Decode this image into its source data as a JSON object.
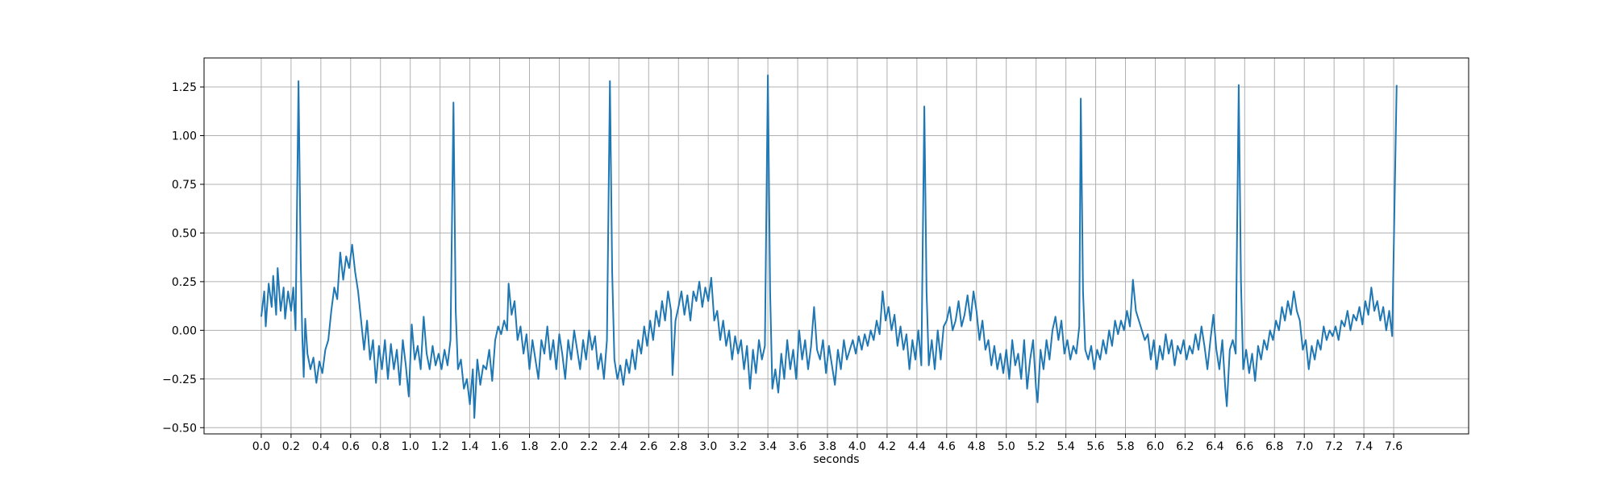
{
  "chart_data": {
    "type": "line",
    "xlabel": "seconds",
    "color": "#1f77b4",
    "grid": true,
    "xlim": [
      -0.384,
      8.103
    ],
    "ylim": [
      -0.532,
      1.399
    ],
    "xticks": [
      {
        "value": 0,
        "label": "0.0"
      },
      0.2,
      0.4,
      0.6,
      0.8,
      {
        "value": 1,
        "label": "1.0"
      },
      1.2,
      1.4,
      1.6,
      1.8,
      {
        "value": 2,
        "label": "2.0"
      },
      2.2,
      2.4,
      2.6,
      2.8,
      {
        "value": 3,
        "label": "3.0"
      },
      3.2,
      3.4,
      3.6,
      3.8,
      {
        "value": 4,
        "label": "4.0"
      },
      4.2,
      4.4,
      4.6,
      4.8,
      {
        "value": 5,
        "label": "5.0"
      },
      5.2,
      5.4,
      5.6,
      5.8,
      {
        "value": 6,
        "label": "6.0"
      },
      6.2,
      6.4,
      6.6,
      6.8,
      {
        "value": 7,
        "label": "7.0"
      },
      7.2,
      7.4,
      7.6
    ],
    "yticks": [
      {
        "value": -0.5,
        "label": "−0.50"
      },
      {
        "value": -0.25,
        "label": "−0.25"
      },
      {
        "value": 0,
        "label": "0.00"
      },
      0.25,
      {
        "value": 0.5,
        "label": "0.50"
      },
      0.75,
      {
        "value": 1,
        "label": "1.00"
      },
      1.25
    ],
    "x": [
      0.0,
      0.02,
      0.03,
      0.05,
      0.07,
      0.08,
      0.1,
      0.11,
      0.13,
      0.15,
      0.16,
      0.18,
      0.2,
      0.215,
      0.23,
      0.25,
      0.265,
      0.275,
      0.285,
      0.295,
      0.31,
      0.33,
      0.35,
      0.37,
      0.39,
      0.41,
      0.43,
      0.45,
      0.47,
      0.49,
      0.51,
      0.53,
      0.55,
      0.57,
      0.59,
      0.61,
      0.63,
      0.65,
      0.67,
      0.69,
      0.71,
      0.73,
      0.75,
      0.77,
      0.79,
      0.81,
      0.83,
      0.85,
      0.87,
      0.89,
      0.91,
      0.93,
      0.95,
      0.97,
      0.99,
      1.01,
      1.03,
      1.05,
      1.07,
      1.09,
      1.11,
      1.13,
      1.15,
      1.17,
      1.19,
      1.21,
      1.23,
      1.25,
      1.27,
      1.29,
      1.305,
      1.32,
      1.34,
      1.36,
      1.38,
      1.4,
      1.42,
      1.43,
      1.45,
      1.47,
      1.49,
      1.51,
      1.53,
      1.55,
      1.57,
      1.59,
      1.61,
      1.63,
      1.65,
      1.66,
      1.68,
      1.7,
      1.72,
      1.74,
      1.76,
      1.78,
      1.8,
      1.82,
      1.84,
      1.86,
      1.88,
      1.9,
      1.92,
      1.94,
      1.96,
      1.98,
      2.0,
      2.02,
      2.04,
      2.06,
      2.08,
      2.1,
      2.12,
      2.14,
      2.16,
      2.18,
      2.2,
      2.22,
      2.24,
      2.26,
      2.28,
      2.3,
      2.32,
      2.34,
      2.355,
      2.37,
      2.39,
      2.41,
      2.43,
      2.45,
      2.47,
      2.49,
      2.51,
      2.53,
      2.55,
      2.57,
      2.59,
      2.61,
      2.63,
      2.65,
      2.67,
      2.69,
      2.71,
      2.73,
      2.75,
      2.76,
      2.78,
      2.8,
      2.82,
      2.84,
      2.86,
      2.88,
      2.9,
      2.92,
      2.94,
      2.96,
      2.98,
      3.0,
      3.02,
      3.04,
      3.06,
      3.08,
      3.1,
      3.12,
      3.14,
      3.16,
      3.18,
      3.2,
      3.22,
      3.24,
      3.26,
      3.28,
      3.3,
      3.32,
      3.34,
      3.36,
      3.38,
      3.4,
      3.415,
      3.43,
      3.45,
      3.47,
      3.49,
      3.51,
      3.53,
      3.55,
      3.57,
      3.59,
      3.61,
      3.63,
      3.65,
      3.67,
      3.69,
      3.71,
      3.73,
      3.75,
      3.77,
      3.79,
      3.81,
      3.83,
      3.85,
      3.87,
      3.89,
      3.91,
      3.93,
      3.95,
      3.97,
      3.99,
      4.01,
      4.03,
      4.05,
      4.07,
      4.09,
      4.11,
      4.13,
      4.15,
      4.17,
      4.19,
      4.21,
      4.23,
      4.25,
      4.27,
      4.29,
      4.31,
      4.33,
      4.35,
      4.37,
      4.39,
      4.41,
      4.43,
      4.45,
      4.465,
      4.48,
      4.5,
      4.52,
      4.54,
      4.56,
      4.58,
      4.6,
      4.62,
      4.64,
      4.66,
      4.68,
      4.7,
      4.72,
      4.74,
      4.76,
      4.78,
      4.8,
      4.82,
      4.84,
      4.86,
      4.88,
      4.9,
      4.92,
      4.94,
      4.96,
      4.98,
      5.0,
      5.02,
      5.04,
      5.06,
      5.08,
      5.1,
      5.12,
      5.14,
      5.16,
      5.18,
      5.2,
      5.21,
      5.23,
      5.25,
      5.27,
      5.29,
      5.31,
      5.33,
      5.35,
      5.37,
      5.39,
      5.41,
      5.43,
      5.45,
      5.47,
      5.49,
      5.5,
      5.515,
      5.53,
      5.55,
      5.57,
      5.59,
      5.61,
      5.63,
      5.65,
      5.67,
      5.69,
      5.71,
      5.73,
      5.75,
      5.77,
      5.79,
      5.81,
      5.83,
      5.85,
      5.87,
      5.89,
      5.91,
      5.93,
      5.95,
      5.97,
      5.99,
      6.01,
      6.03,
      6.05,
      6.07,
      6.09,
      6.11,
      6.13,
      6.15,
      6.17,
      6.19,
      6.21,
      6.23,
      6.25,
      6.27,
      6.29,
      6.31,
      6.33,
      6.35,
      6.37,
      6.39,
      6.41,
      6.43,
      6.45,
      6.47,
      6.48,
      6.5,
      6.52,
      6.54,
      6.56,
      6.575,
      6.59,
      6.61,
      6.63,
      6.65,
      6.67,
      6.69,
      6.71,
      6.73,
      6.75,
      6.77,
      6.79,
      6.81,
      6.83,
      6.85,
      6.87,
      6.89,
      6.91,
      6.93,
      6.95,
      6.97,
      6.99,
      7.01,
      7.03,
      7.05,
      7.07,
      7.09,
      7.11,
      7.13,
      7.15,
      7.17,
      7.19,
      7.21,
      7.23,
      7.25,
      7.27,
      7.29,
      7.31,
      7.33,
      7.35,
      7.37,
      7.39,
      7.41,
      7.43,
      7.45,
      7.47,
      7.49,
      7.51,
      7.53,
      7.55,
      7.57,
      7.59,
      7.62
    ],
    "values": [
      0.07,
      0.2,
      0.02,
      0.24,
      0.12,
      0.28,
      0.08,
      0.32,
      0.1,
      0.22,
      0.06,
      0.2,
      0.1,
      0.22,
      0.0,
      1.28,
      0.35,
      -0.02,
      -0.24,
      0.06,
      -0.12,
      -0.2,
      -0.14,
      -0.27,
      -0.16,
      -0.22,
      -0.1,
      -0.05,
      0.1,
      0.22,
      0.16,
      0.4,
      0.26,
      0.38,
      0.32,
      0.44,
      0.3,
      0.2,
      0.05,
      -0.1,
      0.05,
      -0.15,
      -0.05,
      -0.27,
      -0.08,
      -0.2,
      -0.05,
      -0.25,
      -0.07,
      -0.2,
      -0.1,
      -0.28,
      -0.05,
      -0.18,
      -0.34,
      0.03,
      -0.15,
      -0.08,
      -0.2,
      0.07,
      -0.12,
      -0.2,
      -0.08,
      -0.18,
      -0.12,
      -0.2,
      -0.1,
      -0.18,
      -0.05,
      1.17,
      0.1,
      -0.2,
      -0.15,
      -0.3,
      -0.25,
      -0.38,
      -0.2,
      -0.45,
      -0.15,
      -0.28,
      -0.18,
      -0.2,
      -0.1,
      -0.26,
      -0.05,
      0.02,
      -0.02,
      0.05,
      0.0,
      0.24,
      0.08,
      0.15,
      -0.05,
      0.02,
      -0.12,
      -0.02,
      -0.2,
      -0.05,
      -0.15,
      -0.25,
      -0.05,
      -0.12,
      0.02,
      -0.15,
      -0.05,
      -0.2,
      -0.02,
      -0.12,
      -0.25,
      -0.05,
      -0.15,
      0.0,
      -0.1,
      -0.2,
      -0.05,
      -0.15,
      0.0,
      -0.1,
      -0.03,
      -0.2,
      -0.12,
      -0.25,
      -0.05,
      1.28,
      0.3,
      -0.15,
      -0.25,
      -0.18,
      -0.28,
      -0.15,
      -0.22,
      -0.1,
      -0.2,
      -0.05,
      -0.12,
      0.02,
      -0.08,
      0.05,
      -0.05,
      0.1,
      0.02,
      0.15,
      0.05,
      0.2,
      0.1,
      -0.23,
      0.05,
      0.12,
      0.2,
      0.08,
      0.18,
      0.05,
      0.2,
      0.15,
      0.25,
      0.12,
      0.22,
      0.15,
      0.27,
      0.05,
      0.1,
      -0.05,
      0.05,
      -0.08,
      0.0,
      -0.15,
      -0.03,
      -0.12,
      -0.05,
      -0.2,
      -0.08,
      -0.3,
      -0.1,
      -0.22,
      -0.05,
      -0.15,
      -0.08,
      1.31,
      0.2,
      -0.3,
      -0.2,
      -0.32,
      -0.12,
      -0.25,
      -0.05,
      -0.2,
      -0.1,
      -0.25,
      0.0,
      -0.15,
      -0.05,
      -0.2,
      -0.08,
      0.12,
      -0.1,
      -0.15,
      -0.05,
      -0.22,
      -0.08,
      -0.18,
      -0.28,
      -0.1,
      -0.2,
      -0.05,
      -0.15,
      -0.1,
      -0.05,
      -0.12,
      -0.03,
      -0.1,
      -0.02,
      -0.08,
      0.0,
      -0.05,
      0.05,
      -0.02,
      0.2,
      0.05,
      0.12,
      0.0,
      0.08,
      -0.08,
      0.02,
      -0.1,
      -0.02,
      -0.2,
      -0.05,
      -0.15,
      0.0,
      -0.18,
      1.15,
      0.2,
      -0.18,
      -0.05,
      -0.2,
      0.0,
      -0.15,
      0.02,
      0.05,
      0.12,
      0.0,
      0.05,
      0.15,
      0.02,
      0.08,
      0.18,
      0.05,
      0.2,
      0.1,
      -0.05,
      0.05,
      -0.1,
      -0.05,
      -0.18,
      -0.08,
      -0.2,
      -0.12,
      -0.22,
      -0.1,
      -0.25,
      -0.05,
      -0.18,
      -0.12,
      -0.25,
      -0.05,
      -0.3,
      -0.15,
      -0.05,
      -0.3,
      -0.37,
      -0.1,
      -0.2,
      -0.05,
      -0.15,
      0.0,
      0.07,
      -0.05,
      0.05,
      -0.12,
      -0.05,
      -0.15,
      -0.08,
      -0.12,
      0.02,
      1.19,
      0.2,
      -0.1,
      -0.15,
      -0.08,
      -0.2,
      -0.1,
      -0.15,
      -0.05,
      -0.12,
      0.0,
      -0.08,
      0.05,
      -0.02,
      0.05,
      0.0,
      0.1,
      0.02,
      0.26,
      0.1,
      0.05,
      0.0,
      -0.05,
      -0.02,
      -0.15,
      -0.05,
      -0.2,
      -0.08,
      -0.15,
      -0.02,
      -0.12,
      -0.05,
      -0.18,
      -0.08,
      -0.12,
      -0.05,
      -0.15,
      -0.08,
      -0.12,
      -0.02,
      -0.1,
      0.02,
      -0.08,
      -0.2,
      -0.05,
      0.08,
      -0.1,
      -0.2,
      -0.05,
      -0.3,
      -0.39,
      -0.1,
      -0.05,
      -0.12,
      1.26,
      0.25,
      -0.2,
      -0.1,
      -0.22,
      -0.12,
      -0.26,
      -0.08,
      -0.15,
      -0.05,
      -0.1,
      0.0,
      -0.05,
      0.05,
      0.0,
      0.12,
      0.05,
      0.15,
      0.08,
      0.2,
      0.1,
      0.05,
      -0.1,
      -0.05,
      -0.2,
      -0.08,
      -0.15,
      -0.05,
      -0.1,
      0.02,
      -0.05,
      0.0,
      -0.03,
      0.02,
      -0.05,
      0.05,
      0.02,
      0.1,
      0.0,
      0.08,
      0.05,
      0.12,
      0.03,
      0.15,
      0.08,
      0.22,
      0.1,
      0.15,
      0.05,
      0.12,
      0.0,
      0.1,
      -0.03,
      1.26
    ]
  }
}
